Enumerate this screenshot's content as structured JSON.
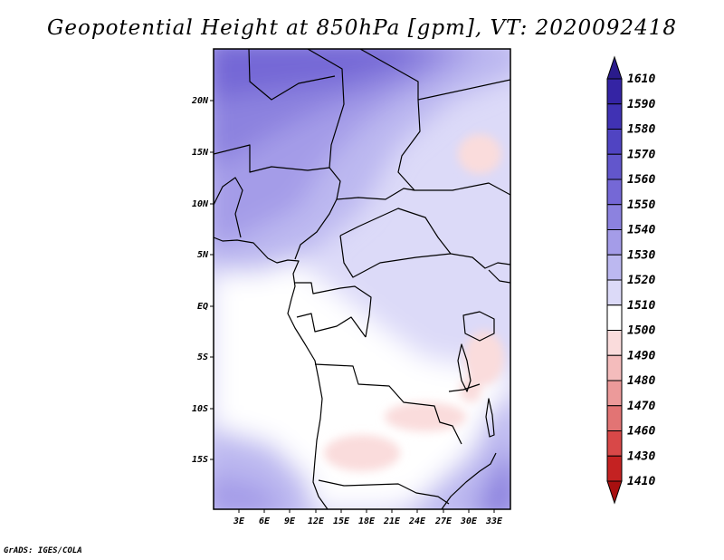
{
  "map": {
    "title": "Geopotential Height at 850hPa [gpm], VT: 2020092418",
    "footer": "GrADS: IGES/COLA",
    "lat_labels": [
      "20N",
      "15N",
      "10N",
      "5N",
      "EQ",
      "5S",
      "10S",
      "15S"
    ],
    "lon_labels": [
      "3E",
      "6E",
      "9E",
      "12E",
      "15E",
      "18E",
      "21E",
      "24E",
      "27E",
      "30E",
      "33E"
    ]
  },
  "legend": {
    "levels": [
      "1610",
      "1590",
      "1580",
      "1570",
      "1560",
      "1550",
      "1540",
      "1530",
      "1520",
      "1510",
      "1500",
      "1490",
      "1480",
      "1470",
      "1460",
      "1430",
      "1410"
    ],
    "colors": [
      "#2a1b8c",
      "#3424a4",
      "#4032b4",
      "#5044c2",
      "#6256cc",
      "#7568d6",
      "#8c82df",
      "#a49ce8",
      "#bcb8f0",
      "#dcdaf8",
      "#ffffff",
      "#fadcdc",
      "#f4bcbc",
      "#ec9a9a",
      "#e27474",
      "#d84848",
      "#c42222",
      "#a81010"
    ]
  }
}
